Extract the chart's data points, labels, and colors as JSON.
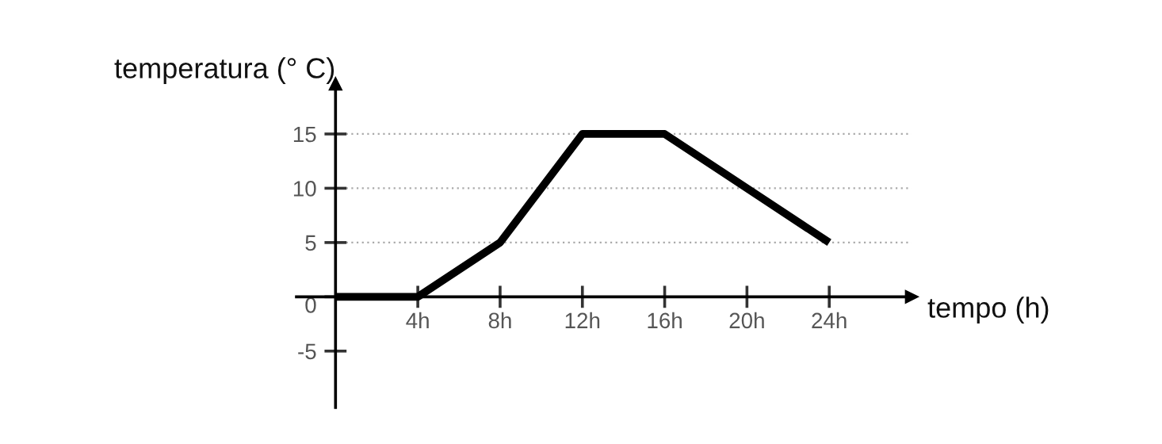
{
  "chart_data": {
    "type": "line",
    "xlabel": "tempo (h)",
    "ylabel": "temperatura (° C)",
    "x": [
      0,
      4,
      8,
      12,
      16,
      24
    ],
    "series": [
      {
        "color": "#000000",
        "values": [
          0,
          0,
          5,
          15,
          15,
          5
        ]
      }
    ],
    "xlim": [
      -1.9,
      28
    ],
    "ylim": [
      -10.2,
      19.6
    ],
    "xticks": [
      {
        "value": 4,
        "label": "4h"
      },
      {
        "value": 8,
        "label": "8h"
      },
      {
        "value": 12,
        "label": "12h"
      },
      {
        "value": 16,
        "label": "16h"
      },
      {
        "value": 20,
        "label": "20h"
      },
      {
        "value": 24,
        "label": "24h"
      }
    ],
    "yticks": [
      -5,
      0,
      5,
      10,
      15
    ],
    "grid": "y",
    "marker": "none",
    "line_style": "solid"
  }
}
